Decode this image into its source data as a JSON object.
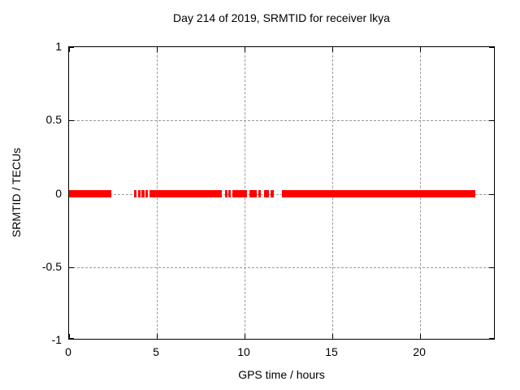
{
  "title": "Day 214 of 2019, SRMTID for receiver lkya",
  "chart_data": {
    "type": "scatter",
    "title": "Day 214 of 2019, SRMTID for receiver lkya",
    "xlabel": "GPS time / hours",
    "ylabel": "SRMTID / TECUs",
    "xlim": [
      0,
      24.3
    ],
    "ylim": [
      -1,
      1
    ],
    "xticks": [
      0,
      5,
      10,
      15,
      20
    ],
    "xtick_labels": [
      "0",
      "5",
      "10",
      "15",
      "20"
    ],
    "yticks": [
      -1,
      -0.5,
      0,
      0.5,
      1
    ],
    "ytick_labels": [
      "-1",
      "-0.5",
      "0",
      "0.5",
      "1"
    ],
    "grid_xticks": [
      5,
      10,
      15,
      20
    ],
    "grid_yticks": [
      -0.5,
      0,
      0.5
    ],
    "grid": true,
    "legend": "none",
    "series": [
      {
        "name": "SRMTID",
        "color": "#ff0000",
        "y_value": 0,
        "segments_hours": [
          [
            0.0,
            2.39
          ],
          [
            3.72,
            3.86
          ],
          [
            3.94,
            4.09
          ],
          [
            4.13,
            4.29
          ],
          [
            4.37,
            4.49
          ],
          [
            4.57,
            8.69
          ],
          [
            8.89,
            9.01
          ],
          [
            9.07,
            9.21
          ],
          [
            9.31,
            10.14
          ],
          [
            10.26,
            10.68
          ],
          [
            10.77,
            10.93
          ],
          [
            11.11,
            11.39
          ],
          [
            11.5,
            11.67
          ],
          [
            12.13,
            23.16
          ]
        ]
      }
    ],
    "colors": {
      "series": "#ff0000",
      "grid": "#9a9a9a",
      "axis": "#000000",
      "background": "#ffffff",
      "text": "#000000"
    }
  }
}
